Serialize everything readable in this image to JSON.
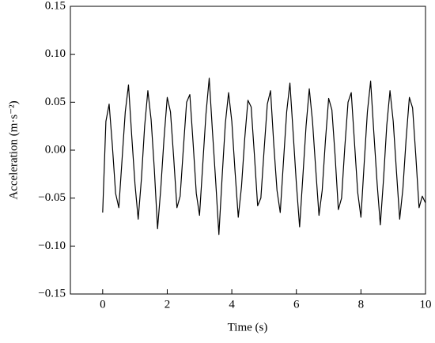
{
  "chart_data": {
    "type": "line",
    "x_label": "Time (s)",
    "y_label": "Acceleration (m·s⁻²)",
    "x": [
      0,
      0.1,
      0.2,
      0.3,
      0.4,
      0.5,
      0.6,
      0.7,
      0.8,
      0.9,
      1,
      1.1,
      1.2,
      1.3,
      1.4,
      1.5,
      1.6,
      1.7,
      1.8,
      1.9,
      2,
      2.1,
      2.2,
      2.3,
      2.4,
      2.5,
      2.6,
      2.7,
      2.8,
      2.9,
      3,
      3.1,
      3.2,
      3.3,
      3.4,
      3.5,
      3.6,
      3.7,
      3.8,
      3.9,
      4,
      4.1,
      4.2,
      4.3,
      4.4,
      4.5,
      4.6,
      4.7,
      4.8,
      4.9,
      5,
      5.1,
      5.2,
      5.3,
      5.4,
      5.5,
      5.6,
      5.7,
      5.8,
      5.9,
      6,
      6.1,
      6.2,
      6.3,
      6.4,
      6.5,
      6.6,
      6.7,
      6.8,
      6.9,
      7,
      7.1,
      7.2,
      7.3,
      7.4,
      7.5,
      7.6,
      7.7,
      7.8,
      7.9,
      8,
      8.1,
      8.2,
      8.3,
      8.4,
      8.5,
      8.6,
      8.7,
      8.8,
      8.9,
      9,
      9.1,
      9.2,
      9.3,
      9.4,
      9.5,
      9.6,
      9.7,
      9.8,
      9.9,
      10
    ],
    "series": [
      {
        "name": "Acceleration",
        "color": "#000000",
        "values": [
          -0.065,
          0.03,
          0.048,
          0.005,
          -0.045,
          -0.06,
          -0.01,
          0.04,
          0.068,
          0.015,
          -0.035,
          -0.072,
          -0.03,
          0.025,
          0.062,
          0.032,
          -0.02,
          -0.082,
          -0.04,
          0.012,
          0.055,
          0.04,
          -0.008,
          -0.06,
          -0.048,
          0.002,
          0.05,
          0.058,
          0.008,
          -0.045,
          -0.068,
          -0.015,
          0.038,
          0.075,
          0.02,
          -0.032,
          -0.088,
          -0.028,
          0.028,
          0.06,
          0.03,
          -0.022,
          -0.07,
          -0.038,
          0.012,
          0.052,
          0.045,
          -0.005,
          -0.058,
          -0.05,
          0.0,
          0.048,
          0.062,
          0.006,
          -0.042,
          -0.065,
          -0.012,
          0.04,
          0.07,
          0.018,
          -0.035,
          -0.08,
          -0.028,
          0.025,
          0.064,
          0.03,
          -0.02,
          -0.068,
          -0.042,
          0.01,
          0.054,
          0.042,
          -0.006,
          -0.062,
          -0.05,
          0.003,
          0.05,
          0.06,
          0.008,
          -0.044,
          -0.07,
          -0.014,
          0.04,
          0.072,
          0.018,
          -0.034,
          -0.078,
          -0.03,
          0.026,
          0.062,
          0.03,
          -0.022,
          -0.072,
          -0.04,
          0.012,
          0.055,
          0.044,
          -0.006,
          -0.06,
          -0.048,
          -0.055
        ]
      }
    ],
    "xlim": [
      -1,
      10
    ],
    "xticks": [
      0,
      2,
      4,
      6,
      8,
      10
    ],
    "ylim": [
      -0.15,
      0.15
    ],
    "yticks": [
      {
        "value": -0.15,
        "label": "−0.15"
      },
      {
        "value": -0.1,
        "label": "−0.10"
      },
      {
        "value": -0.05,
        "label": "−0.05"
      },
      {
        "value": 0,
        "label": "0.00"
      },
      {
        "value": 0.05,
        "label": "0.05"
      },
      {
        "value": 0.1,
        "label": "0.10"
      },
      0.15
    ],
    "grid": false
  }
}
